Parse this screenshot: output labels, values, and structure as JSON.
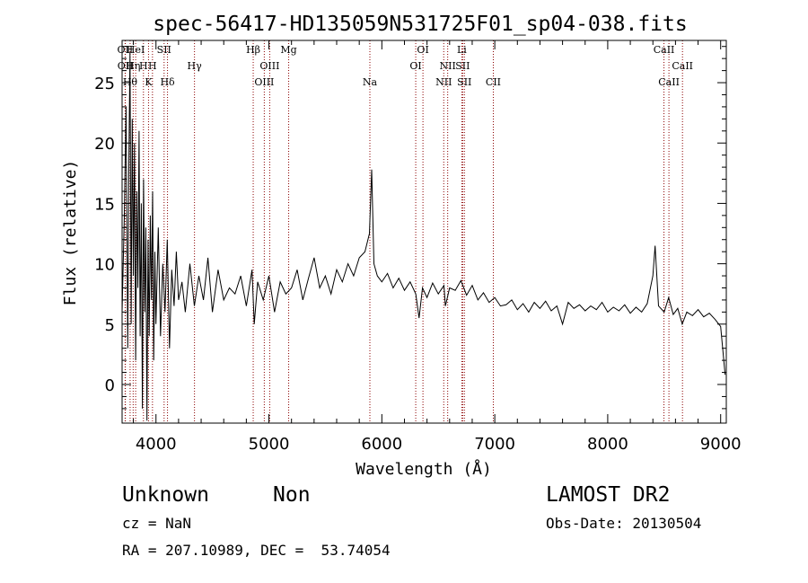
{
  "chart_data": {
    "type": "line",
    "title": "spec-56417-HD135059N531725F01_sp04-038.fits",
    "xlabel": "Wavelength (Å)",
    "ylabel": "Flux (relative)",
    "xlim": [
      3700,
      9050
    ],
    "ylim": [
      -3.2,
      28.5
    ],
    "x_ticks": [
      4000,
      5000,
      6000,
      7000,
      8000,
      9000
    ],
    "y_ticks": [
      0,
      5,
      10,
      15,
      20,
      25
    ],
    "x_tick_labels": [
      "4000",
      "5000",
      "6000",
      "7000",
      "8000",
      "9000"
    ],
    "y_tick_labels": [
      "0",
      "5",
      "10",
      "15",
      "20",
      "25"
    ],
    "grid": false,
    "legend": "none",
    "line_color": "#000000",
    "marker_color": "#8b0000",
    "series": [
      {
        "values": [
          [
            3700,
            6.0
          ],
          [
            3720,
            14.0
          ],
          [
            3735,
            23.0
          ],
          [
            3750,
            3.0
          ],
          [
            3760,
            18.0
          ],
          [
            3770,
            27.5
          ],
          [
            3780,
            5.0
          ],
          [
            3790,
            22.0
          ],
          [
            3800,
            9.0
          ],
          [
            3810,
            20.0
          ],
          [
            3820,
            2.0
          ],
          [
            3830,
            16.0
          ],
          [
            3840,
            8.0
          ],
          [
            3850,
            21.0
          ],
          [
            3860,
            4.0
          ],
          [
            3870,
            15.0
          ],
          [
            3880,
            -2.0
          ],
          [
            3890,
            17.0
          ],
          [
            3900,
            6.0
          ],
          [
            3910,
            13.0
          ],
          [
            3920,
            -3.0
          ],
          [
            3930,
            12.0
          ],
          [
            3940,
            4.0
          ],
          [
            3950,
            14.0
          ],
          [
            3960,
            7.0
          ],
          [
            3970,
            16.0
          ],
          [
            3980,
            2.0
          ],
          [
            3990,
            11.0
          ],
          [
            4000,
            5.0
          ],
          [
            4020,
            13.0
          ],
          [
            4040,
            4.0
          ],
          [
            4060,
            10.0
          ],
          [
            4080,
            6.0
          ],
          [
            4100,
            12.0
          ],
          [
            4120,
            3.0
          ],
          [
            4140,
            9.5
          ],
          [
            4160,
            6.5
          ],
          [
            4180,
            11.0
          ],
          [
            4200,
            7.0
          ],
          [
            4230,
            8.5
          ],
          [
            4260,
            6.0
          ],
          [
            4300,
            10.0
          ],
          [
            4340,
            6.5
          ],
          [
            4380,
            9.0
          ],
          [
            4420,
            7.0
          ],
          [
            4460,
            10.5
          ],
          [
            4500,
            6.0
          ],
          [
            4550,
            9.5
          ],
          [
            4600,
            7.0
          ],
          [
            4650,
            8.0
          ],
          [
            4700,
            7.5
          ],
          [
            4750,
            9.0
          ],
          [
            4800,
            6.5
          ],
          [
            4850,
            9.5
          ],
          [
            4870,
            5.0
          ],
          [
            4900,
            8.5
          ],
          [
            4950,
            7.0
          ],
          [
            5000,
            9.0
          ],
          [
            5050,
            6.0
          ],
          [
            5100,
            8.5
          ],
          [
            5150,
            7.5
          ],
          [
            5200,
            8.0
          ],
          [
            5250,
            9.5
          ],
          [
            5300,
            7.0
          ],
          [
            5350,
            8.8
          ],
          [
            5400,
            10.5
          ],
          [
            5450,
            8.0
          ],
          [
            5500,
            9.0
          ],
          [
            5550,
            7.5
          ],
          [
            5600,
            9.5
          ],
          [
            5650,
            8.5
          ],
          [
            5700,
            10.0
          ],
          [
            5750,
            9.0
          ],
          [
            5800,
            10.5
          ],
          [
            5850,
            11.0
          ],
          [
            5890,
            12.5
          ],
          [
            5910,
            17.8
          ],
          [
            5930,
            10.0
          ],
          [
            5960,
            9.0
          ],
          [
            6000,
            8.5
          ],
          [
            6050,
            9.2
          ],
          [
            6100,
            8.0
          ],
          [
            6150,
            8.8
          ],
          [
            6200,
            7.8
          ],
          [
            6250,
            8.5
          ],
          [
            6300,
            7.5
          ],
          [
            6330,
            5.5
          ],
          [
            6360,
            8.0
          ],
          [
            6400,
            7.2
          ],
          [
            6450,
            8.4
          ],
          [
            6500,
            7.5
          ],
          [
            6550,
            8.2
          ],
          [
            6563,
            6.5
          ],
          [
            6600,
            8.0
          ],
          [
            6650,
            7.8
          ],
          [
            6700,
            8.6
          ],
          [
            6750,
            7.4
          ],
          [
            6800,
            8.2
          ],
          [
            6850,
            7.0
          ],
          [
            6900,
            7.6
          ],
          [
            6950,
            6.8
          ],
          [
            7000,
            7.2
          ],
          [
            7050,
            6.5
          ],
          [
            7100,
            6.6
          ],
          [
            7150,
            7.0
          ],
          [
            7200,
            6.2
          ],
          [
            7250,
            6.7
          ],
          [
            7300,
            6.0
          ],
          [
            7350,
            6.8
          ],
          [
            7400,
            6.3
          ],
          [
            7450,
            6.9
          ],
          [
            7500,
            6.1
          ],
          [
            7550,
            6.5
          ],
          [
            7600,
            5.0
          ],
          [
            7650,
            6.8
          ],
          [
            7700,
            6.3
          ],
          [
            7750,
            6.6
          ],
          [
            7800,
            6.1
          ],
          [
            7850,
            6.5
          ],
          [
            7900,
            6.2
          ],
          [
            7950,
            6.8
          ],
          [
            8000,
            6.0
          ],
          [
            8050,
            6.4
          ],
          [
            8100,
            6.1
          ],
          [
            8150,
            6.6
          ],
          [
            8200,
            5.9
          ],
          [
            8250,
            6.4
          ],
          [
            8300,
            6.0
          ],
          [
            8350,
            6.7
          ],
          [
            8400,
            9.0
          ],
          [
            8420,
            11.5
          ],
          [
            8450,
            6.5
          ],
          [
            8500,
            6.0
          ],
          [
            8540,
            7.2
          ],
          [
            8580,
            5.8
          ],
          [
            8620,
            6.3
          ],
          [
            8660,
            5.0
          ],
          [
            8700,
            6.0
          ],
          [
            8750,
            5.7
          ],
          [
            8800,
            6.2
          ],
          [
            8850,
            5.6
          ],
          [
            8900,
            5.9
          ],
          [
            8950,
            5.4
          ],
          [
            9000,
            4.8
          ],
          [
            9040,
            0.8
          ]
        ]
      }
    ],
    "lines": [
      {
        "wavelength": 3727,
        "label": "OII",
        "row": 0
      },
      {
        "wavelength": 3729,
        "label": "OII",
        "row": 1
      },
      {
        "wavelength": 3771,
        "label": "Hθ",
        "row": 2
      },
      {
        "wavelength": 3798,
        "label": "Hη",
        "row": 1
      },
      {
        "wavelength": 3820,
        "label": "HeI",
        "row": 0
      },
      {
        "wavelength": 3889,
        "label": "H",
        "row": 1
      },
      {
        "wavelength": 3934,
        "label": "K",
        "row": 2
      },
      {
        "wavelength": 3969,
        "label": "H",
        "row": 1
      },
      {
        "wavelength": 4072,
        "label": "SII",
        "row": 0
      },
      {
        "wavelength": 4102,
        "label": "Hδ",
        "row": 2
      },
      {
        "wavelength": 4341,
        "label": "Hγ",
        "row": 1
      },
      {
        "wavelength": 4861,
        "label": "Hβ",
        "row": 0
      },
      {
        "wavelength": 4959,
        "label": "OIII",
        "row": 2
      },
      {
        "wavelength": 5007,
        "label": "OIII",
        "row": 1
      },
      {
        "wavelength": 5175,
        "label": "Mg",
        "row": 0
      },
      {
        "wavelength": 5894,
        "label": "Na",
        "row": 2
      },
      {
        "wavelength": 6300,
        "label": "OI",
        "row": 1
      },
      {
        "wavelength": 6364,
        "label": "OI",
        "row": 0
      },
      {
        "wavelength": 6548,
        "label": "NII",
        "row": 2
      },
      {
        "wavelength": 6583,
        "label": "NII",
        "row": 1
      },
      {
        "wavelength": 6708,
        "label": "Li",
        "row": 0
      },
      {
        "wavelength": 6716,
        "label": "SII",
        "row": 1
      },
      {
        "wavelength": 6731,
        "label": "SII",
        "row": 2
      },
      {
        "wavelength": 6987,
        "label": "CII",
        "row": 2
      },
      {
        "wavelength": 8498,
        "label": "CaII",
        "row": 0
      },
      {
        "wavelength": 8542,
        "label": "CaII",
        "row": 2
      },
      {
        "wavelength": 8662,
        "label": "CaII",
        "row": 1
      }
    ]
  },
  "info": {
    "object_name": "Unknown",
    "object_class": "Non",
    "survey": "LAMOST DR2",
    "redshift": "cz = NaN",
    "obs_date": "Obs-Date: 20130504",
    "coords": "RA = 207.10989, DEC =  53.74054"
  }
}
